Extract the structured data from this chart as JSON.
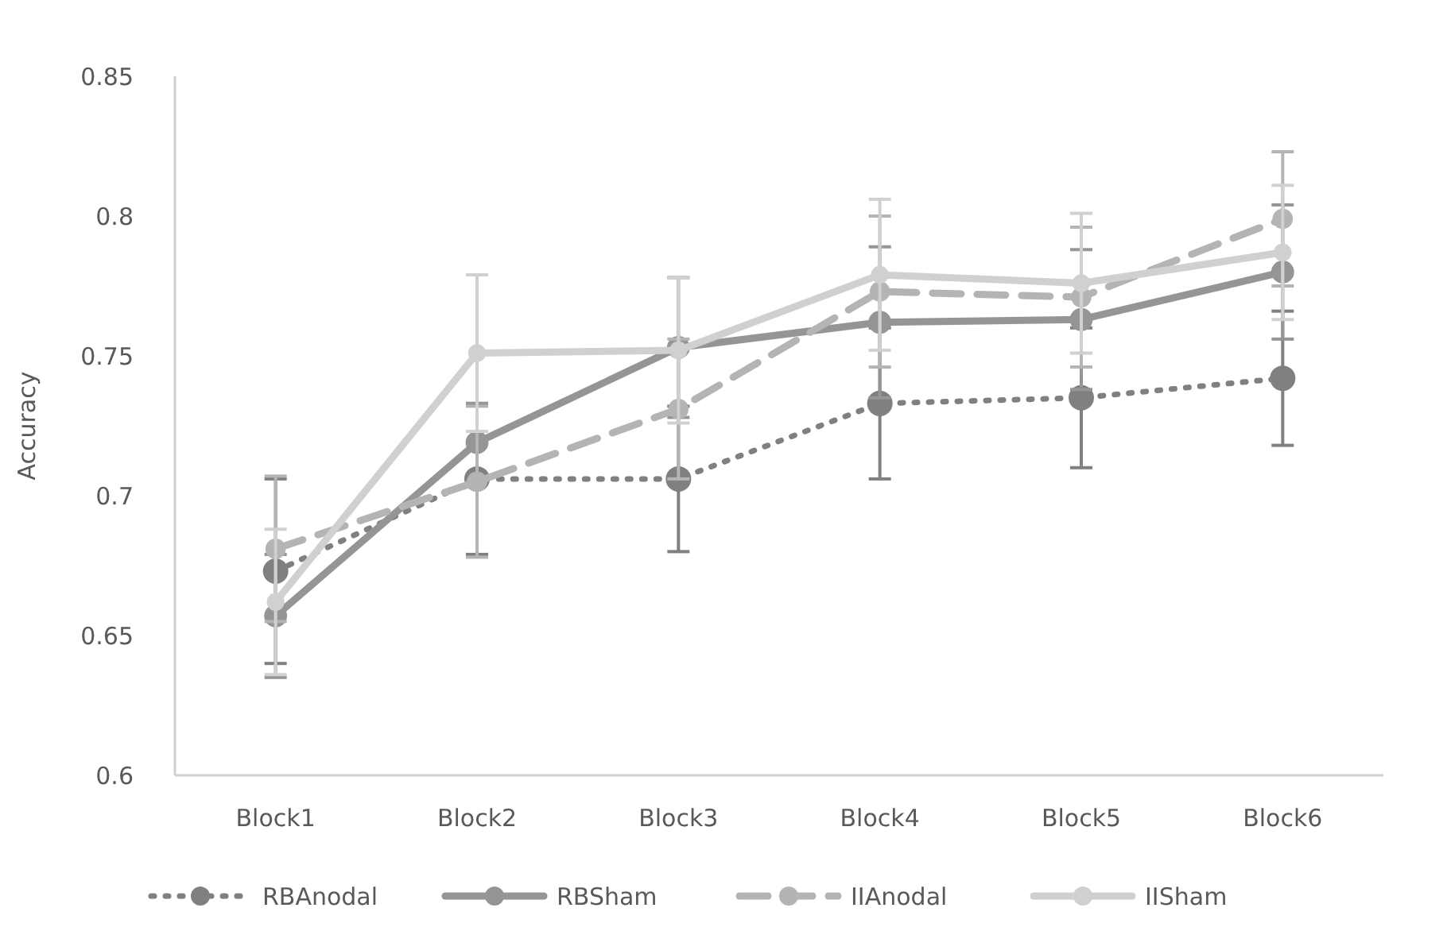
{
  "chart_data": {
    "type": "line",
    "ylabel": "Accuracy",
    "categories": [
      "Block1",
      "Block2",
      "Block3",
      "Block4",
      "Block5",
      "Block6"
    ],
    "ylim": [
      0.6,
      0.85
    ],
    "yticks": [
      0.6,
      0.65,
      0.7,
      0.75,
      0.8,
      0.85
    ],
    "grid": false,
    "legend": "bottom",
    "marker": "circle",
    "series": [
      {
        "name": "RBAnodal",
        "color": "#808080",
        "line_style": "dotted",
        "values": [
          0.673,
          0.706,
          0.706,
          0.733,
          0.735,
          0.742
        ],
        "errors": [
          0.033,
          0.027,
          0.026,
          0.027,
          0.025,
          0.024
        ]
      },
      {
        "name": "RBSham",
        "color": "#959595",
        "line_style": "solid",
        "values": [
          0.657,
          0.719,
          0.753,
          0.762,
          0.763,
          0.78
        ],
        "errors": [
          0.022,
          0.014,
          0.025,
          0.027,
          0.025,
          0.024
        ]
      },
      {
        "name": "IIAnodal",
        "color": "#b4b4b4",
        "line_style": "dashed",
        "values": [
          0.681,
          0.705,
          0.731,
          0.773,
          0.771,
          0.799
        ],
        "errors": [
          0.026,
          0.027,
          0.025,
          0.027,
          0.025,
          0.024
        ]
      },
      {
        "name": "IISham",
        "color": "#d0d0d0",
        "line_style": "solid",
        "values": [
          0.662,
          0.751,
          0.752,
          0.779,
          0.776,
          0.787
        ],
        "errors": [
          0.026,
          0.028,
          0.026,
          0.027,
          0.025,
          0.024
        ]
      }
    ]
  }
}
